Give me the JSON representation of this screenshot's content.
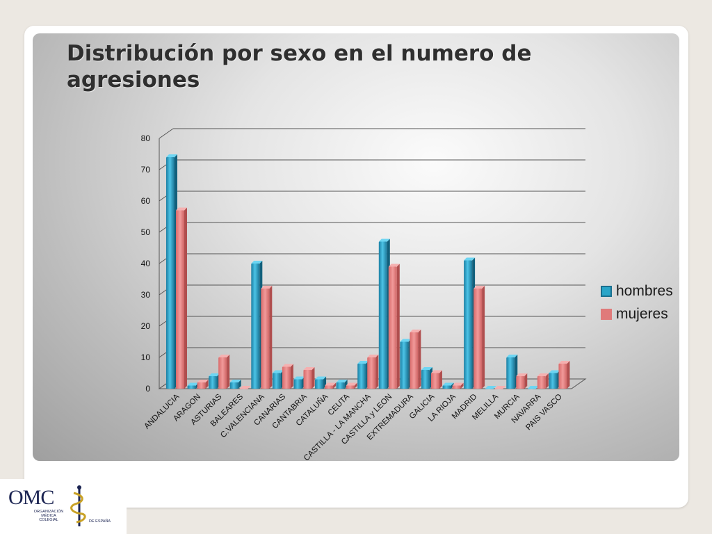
{
  "title": "Distribución por sexo en el numero de agresiones",
  "logo": {
    "main": "OMC",
    "line1": "ORGANIZACIÓN",
    "line2": "MÉDICA",
    "line3": "COLEGIAL",
    "suffix": "DE ESPAÑA"
  },
  "chart_data": {
    "type": "bar",
    "title": "",
    "xlabel": "",
    "ylabel": "",
    "ylim": [
      0,
      80
    ],
    "yticks": [
      0,
      10,
      20,
      30,
      40,
      50,
      60,
      70,
      80
    ],
    "grid": true,
    "legend": "right",
    "categories": [
      "ANDALUCIA",
      "ARAGON",
      "ASTURIAS",
      "BALEARES",
      "C.VALENCIANA",
      "CANARIAS",
      "CANTABRIA",
      "CATALUÑA",
      "CEUTA",
      "CASTILLA - LA MANCHA",
      "CASTILLA y LEON",
      "EXTREMADURA",
      "GALICIA",
      "LA RIOJA",
      "MADRID",
      "MELILLA",
      "MURCIA",
      "NAVARRA",
      "PAIS VASCO"
    ],
    "series": [
      {
        "name": "hombres",
        "color": "#2aa5c8",
        "values": [
          74,
          1,
          4,
          2,
          40,
          5,
          3,
          3,
          2,
          8,
          47,
          15,
          6,
          1,
          41,
          0,
          10,
          0,
          5
        ]
      },
      {
        "name": "mujeres",
        "color": "#e07a7a",
        "values": [
          57,
          2,
          10,
          0,
          32,
          7,
          6,
          1,
          1,
          10,
          39,
          18,
          5,
          1,
          32,
          0,
          4,
          4,
          8
        ]
      }
    ]
  }
}
